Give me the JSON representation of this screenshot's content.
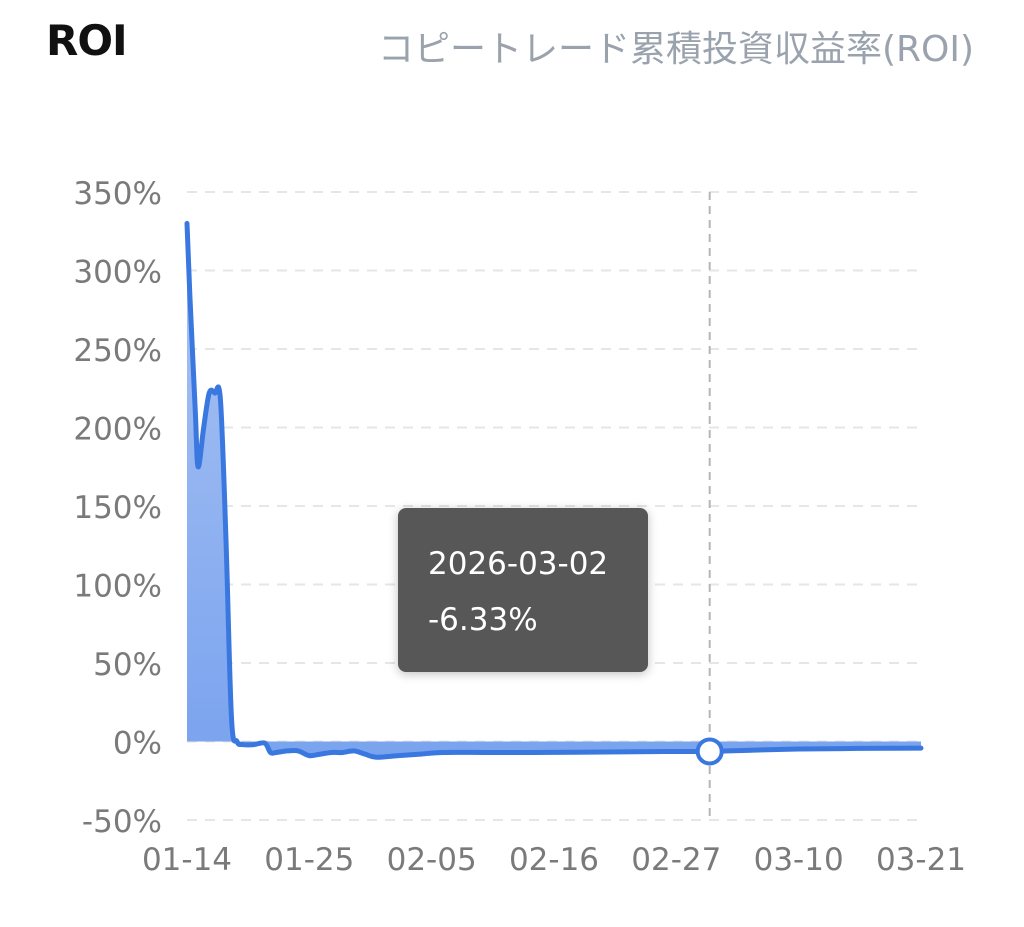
{
  "header": {
    "title": "ROI",
    "subtitle": "コピートレード累積投資収益率(ROI)"
  },
  "tooltip": {
    "date": "2026-03-02",
    "value": "-6.33%"
  },
  "chart_data": {
    "type": "area",
    "title": "",
    "xlabel": "",
    "ylabel": "",
    "x_ticks": [
      "01-14",
      "01-25",
      "02-05",
      "02-16",
      "02-27",
      "03-10",
      "03-21"
    ],
    "y_ticks": [
      "350%",
      "300%",
      "250%",
      "200%",
      "150%",
      "100%",
      "50%",
      "0%",
      "-50%"
    ],
    "ylim": [
      -50,
      350
    ],
    "xlim": [
      "2026-01-14",
      "2026-03-21"
    ],
    "grid": "horizontal dashed",
    "colors": {
      "line": "#3a78e0",
      "fill_top": "#aac4f2",
      "fill_bottom": "#7aa3ef",
      "grid": "#e6e6e6",
      "crosshair": "#b5b5b5"
    },
    "highlight": {
      "x": "2026-03-02",
      "y": -6.33
    },
    "series": [
      {
        "points": [
          [
            "2026-01-14",
            330
          ],
          [
            "2026-01-14T06",
            285
          ],
          [
            "2026-01-14T18",
            210
          ],
          [
            "2026-01-15",
            175
          ],
          [
            "2026-01-15T12",
            200
          ],
          [
            "2026-01-16",
            222
          ],
          [
            "2026-01-16T12",
            222
          ],
          [
            "2026-01-17",
            218
          ],
          [
            "2026-01-17T12",
            130
          ],
          [
            "2026-01-18",
            15
          ],
          [
            "2026-01-18T12",
            0
          ],
          [
            "2026-01-19",
            -2
          ],
          [
            "2026-01-20",
            -2
          ],
          [
            "2026-01-21",
            -1
          ],
          [
            "2026-01-21T12",
            -7
          ],
          [
            "2026-01-22",
            -7
          ],
          [
            "2026-01-23",
            -6
          ],
          [
            "2026-01-24",
            -6
          ],
          [
            "2026-01-25",
            -9
          ],
          [
            "2026-01-26",
            -8
          ],
          [
            "2026-01-27",
            -7
          ],
          [
            "2026-01-28",
            -7
          ],
          [
            "2026-01-29",
            -6
          ],
          [
            "2026-01-30",
            -8
          ],
          [
            "2026-01-31",
            -10
          ],
          [
            "2026-02-02",
            -9
          ],
          [
            "2026-02-04",
            -8
          ],
          [
            "2026-02-06",
            -7
          ],
          [
            "2026-02-10",
            -7
          ],
          [
            "2026-02-14",
            -7
          ],
          [
            "2026-02-18",
            -6.8
          ],
          [
            "2026-02-22",
            -6.6
          ],
          [
            "2026-02-26",
            -6.4
          ],
          [
            "2026-03-02",
            -6.33
          ],
          [
            "2026-03-06",
            -5.5
          ],
          [
            "2026-03-10",
            -4.8
          ],
          [
            "2026-03-14",
            -4.5
          ],
          [
            "2026-03-18",
            -4.3
          ],
          [
            "2026-03-21",
            -4.2
          ]
        ]
      }
    ]
  }
}
